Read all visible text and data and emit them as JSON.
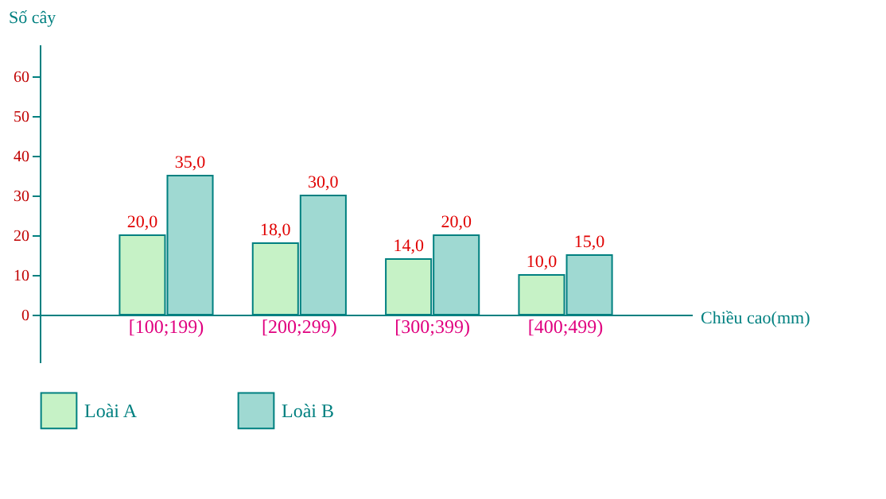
{
  "chart_data": {
    "type": "bar",
    "xlabel": "Chiều cao(mm)",
    "ylabel": "Số cây",
    "categories": [
      "[100;199)",
      "[200;299)",
      "[300;399)",
      "[400;499)"
    ],
    "series": [
      {
        "name": "Loài A",
        "color": "#c6f2c6",
        "values": [
          20,
          18,
          14,
          10
        ],
        "value_labels": [
          "20,0",
          "18,0",
          "14,0",
          "10,0"
        ]
      },
      {
        "name": "Loài B",
        "color": "#9fd9d2",
        "values": [
          35,
          30,
          20,
          15
        ],
        "value_labels": [
          "35,0",
          "30,0",
          "20,0",
          "15,0"
        ]
      }
    ],
    "ylim": [
      -12,
      68
    ],
    "yticks": [
      0,
      10,
      20,
      30,
      40,
      50,
      60
    ],
    "grid": false,
    "legend": "bottom"
  }
}
